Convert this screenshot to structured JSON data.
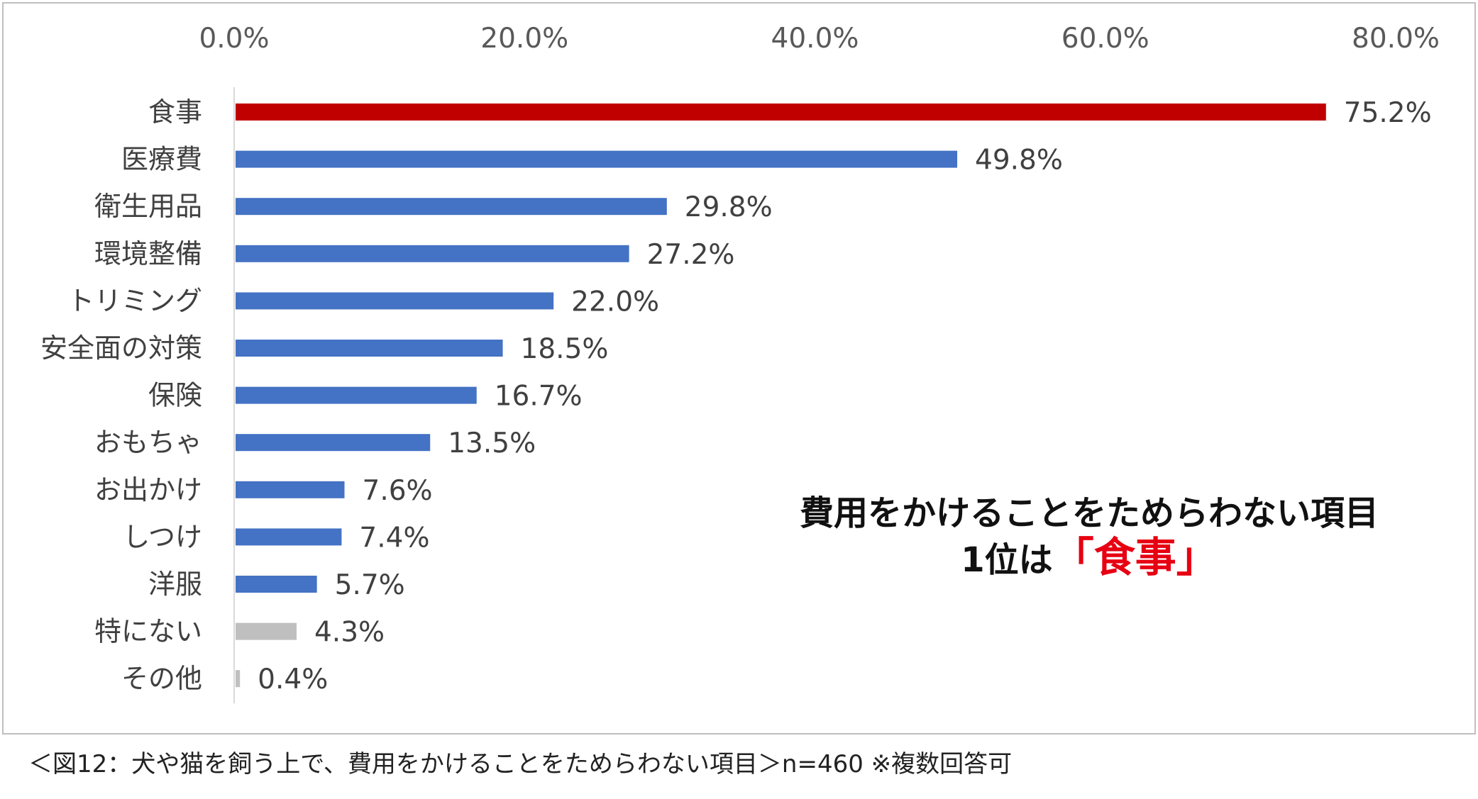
{
  "chart_data": {
    "type": "bar",
    "orientation": "horizontal",
    "categories": [
      "食事",
      "医療費",
      "衛生用品",
      "環境整備",
      "トリミング",
      "安全面の対策",
      "保険",
      "おもちゃ",
      "お出かけ",
      "しつけ",
      "洋服",
      "特にない",
      "その他"
    ],
    "values": [
      75.2,
      49.8,
      29.8,
      27.2,
      22.0,
      18.5,
      16.7,
      13.5,
      7.6,
      7.4,
      5.7,
      4.3,
      0.4
    ],
    "value_labels": [
      "75.2%",
      "49.8%",
      "29.8%",
      "27.2%",
      "22.0%",
      "18.5%",
      "16.7%",
      "13.5%",
      "7.6%",
      "7.4%",
      "5.7%",
      "4.3%",
      "0.4%"
    ],
    "bar_colors": [
      "#c00000",
      "#4472c4",
      "#4472c4",
      "#4472c4",
      "#4472c4",
      "#4472c4",
      "#4472c4",
      "#4472c4",
      "#4472c4",
      "#4472c4",
      "#4472c4",
      "#bfbfbf",
      "#bfbfbf"
    ],
    "xlim": [
      0,
      80
    ],
    "x_ticks": [
      0,
      20,
      40,
      60,
      80
    ],
    "x_tick_labels": [
      "0.0%",
      "20.0%",
      "40.0%",
      "60.0%",
      "80.0%"
    ],
    "x_axis_position": "top",
    "grid": false,
    "title": "",
    "xlabel": "",
    "ylabel": ""
  },
  "annotation": {
    "line1": "費用をかけることをためらわない項目",
    "line2_prefix": "1位は",
    "line2_highlight": "「食事」",
    "highlight_color": "#e60012"
  },
  "caption": "＜図12：犬や猫を飼う上で、費用をかけることをためらわない項目＞n=460 ※複数回答可",
  "colors": {
    "highlight_bar": "#c00000",
    "main_bar": "#4472c4",
    "other_bar": "#bfbfbf",
    "axis_line": "#d9d9d9"
  }
}
